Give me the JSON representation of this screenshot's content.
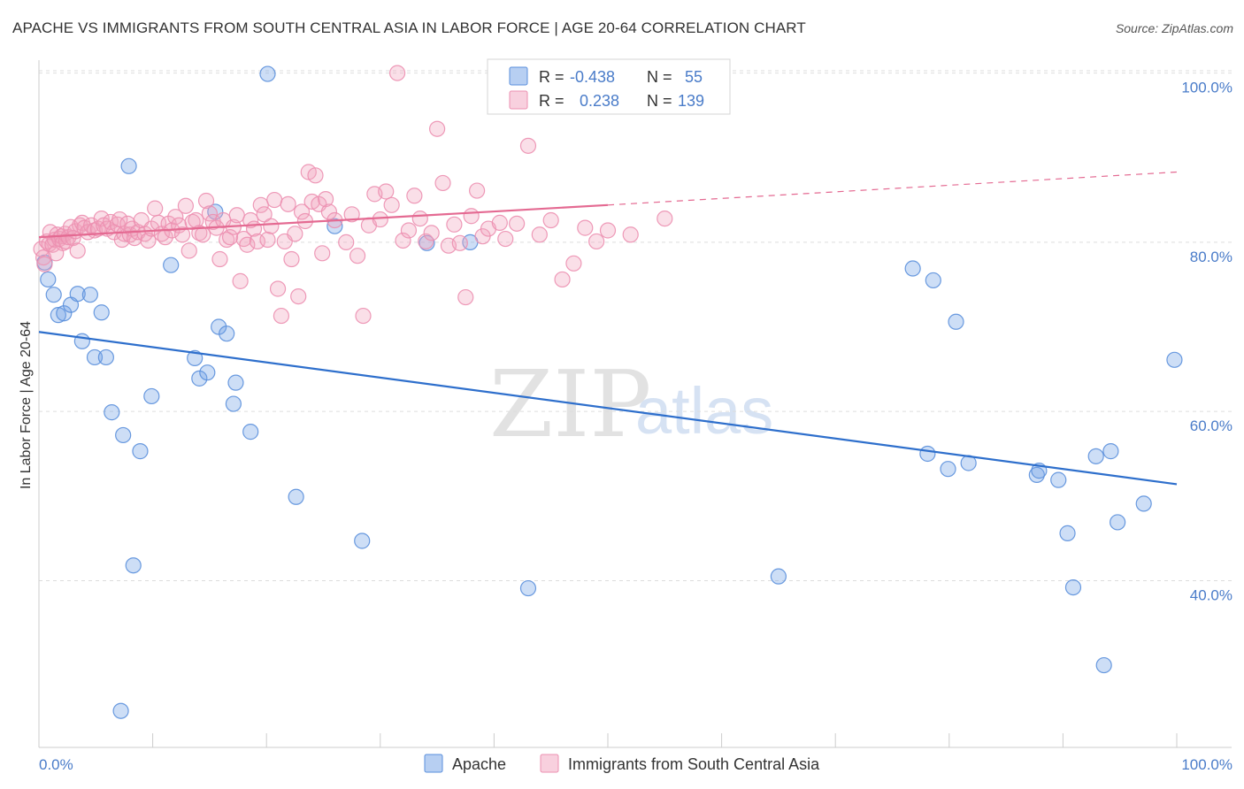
{
  "header": {
    "title": "APACHE VS IMMIGRANTS FROM SOUTH CENTRAL ASIA IN LABOR FORCE | AGE 20-64 CORRELATION CHART",
    "source": "Source: ZipAtlas.com"
  },
  "watermark": {
    "zip": "ZIP",
    "atlas": "atlas"
  },
  "colors": {
    "apache": "#6fa0e6",
    "apache_line": "#2e6fcc",
    "immigrants": "#f2a2bd",
    "immigrants_line": "#e46a92",
    "tick_text": "#4a7cc9",
    "grid": "#dddddd"
  },
  "legend": {
    "apache": {
      "r_label": "R =",
      "r_value": "-0.438",
      "n_label": "N =",
      "n_value": "55"
    },
    "immigrants": {
      "r_label": "R =",
      "r_value": "0.238",
      "n_label": "N =",
      "n_value": "139"
    }
  },
  "chart_data": {
    "type": "scatter",
    "xlabel": "",
    "ylabel": "In Labor Force | Age 20-64",
    "xlim": [
      0,
      100
    ],
    "ylim": [
      20,
      102
    ],
    "x_tick_labels": [
      "0.0%",
      "100.0%"
    ],
    "y_ticks": [
      {
        "value": 40,
        "label": "40.0%"
      },
      {
        "value": 60,
        "label": "60.0%"
      },
      {
        "value": 80,
        "label": "80.0%"
      },
      {
        "value": 100,
        "label": "100.0%"
      }
    ],
    "grid": true,
    "legend_position": "top-center",
    "series": [
      {
        "name": "Apache",
        "trend": {
          "x": [
            0,
            100
          ],
          "y": [
            69.4,
            51.4
          ],
          "style": "solid"
        },
        "points": [
          [
            0.5,
            77.6
          ],
          [
            0.8,
            75.6
          ],
          [
            1.3,
            73.8
          ],
          [
            1.7,
            71.4
          ],
          [
            2.2,
            71.6
          ],
          [
            2.8,
            72.6
          ],
          [
            3.4,
            73.9
          ],
          [
            3.8,
            68.3
          ],
          [
            4.5,
            73.8
          ],
          [
            4.9,
            66.4
          ],
          [
            5.5,
            71.7
          ],
          [
            5.9,
            66.4
          ],
          [
            6.4,
            59.9
          ],
          [
            7.2,
            24.6
          ],
          [
            7.4,
            57.2
          ],
          [
            7.9,
            89.0
          ],
          [
            8.3,
            41.8
          ],
          [
            8.9,
            55.3
          ],
          [
            9.9,
            61.8
          ],
          [
            11.6,
            77.3
          ],
          [
            13.7,
            66.3
          ],
          [
            14.1,
            63.9
          ],
          [
            14.8,
            64.6
          ],
          [
            15.5,
            83.6
          ],
          [
            15.8,
            70.0
          ],
          [
            16.5,
            69.2
          ],
          [
            17.1,
            60.9
          ],
          [
            17.3,
            63.4
          ],
          [
            18.6,
            57.6
          ],
          [
            20.1,
            99.9
          ],
          [
            22.6,
            49.9
          ],
          [
            26.0,
            81.9
          ],
          [
            28.4,
            44.7
          ],
          [
            34.1,
            79.9
          ],
          [
            37.9,
            80.0
          ],
          [
            43.0,
            39.1
          ],
          [
            65.0,
            40.5
          ],
          [
            76.8,
            76.9
          ],
          [
            78.1,
            55.0
          ],
          [
            78.6,
            75.5
          ],
          [
            79.9,
            53.2
          ],
          [
            80.6,
            70.6
          ],
          [
            81.7,
            53.9
          ],
          [
            87.7,
            52.5
          ],
          [
            87.9,
            53.0
          ],
          [
            89.6,
            51.9
          ],
          [
            90.4,
            45.6
          ],
          [
            90.9,
            39.2
          ],
          [
            92.9,
            54.7
          ],
          [
            93.6,
            30.0
          ],
          [
            94.2,
            55.3
          ],
          [
            94.8,
            46.9
          ],
          [
            97.1,
            49.1
          ],
          [
            99.8,
            66.1
          ]
        ]
      },
      {
        "name": "Immigrants from South Central Asia",
        "trend": {
          "x": [
            0,
            50
          ],
          "y": [
            80.6,
            84.4
          ],
          "dashed_extension": {
            "x": [
              50,
              100
            ],
            "y": [
              84.4,
              88.3
            ]
          }
        },
        "points": [
          [
            0.2,
            79.2
          ],
          [
            0.4,
            78.2
          ],
          [
            0.5,
            77.4
          ],
          [
            0.7,
            80.1
          ],
          [
            0.9,
            79.8
          ],
          [
            1.0,
            81.2
          ],
          [
            1.2,
            79.7
          ],
          [
            1.4,
            80.3
          ],
          [
            1.6,
            80.9
          ],
          [
            1.8,
            80.4
          ],
          [
            2.0,
            80.7
          ],
          [
            2.1,
            79.9
          ],
          [
            2.3,
            81.0
          ],
          [
            2.4,
            80.1
          ],
          [
            2.6,
            80.6
          ],
          [
            2.8,
            81.8
          ],
          [
            3.0,
            80.5
          ],
          [
            3.2,
            81.3
          ],
          [
            3.4,
            79.0
          ],
          [
            3.6,
            82.0
          ],
          [
            3.8,
            82.3
          ],
          [
            4.0,
            81.7
          ],
          [
            4.3,
            81.2
          ],
          [
            4.6,
            82.0
          ],
          [
            4.9,
            81.4
          ],
          [
            5.2,
            81.6
          ],
          [
            5.5,
            82.8
          ],
          [
            5.7,
            82.0
          ],
          [
            6.0,
            81.6
          ],
          [
            6.3,
            82.4
          ],
          [
            6.6,
            81.2
          ],
          [
            6.9,
            82.1
          ],
          [
            7.1,
            82.7
          ],
          [
            7.3,
            80.3
          ],
          [
            7.5,
            81.0
          ],
          [
            7.8,
            82.2
          ],
          [
            8.0,
            80.9
          ],
          [
            8.2,
            81.6
          ],
          [
            8.4,
            80.5
          ],
          [
            8.7,
            81.2
          ],
          [
            9.0,
            82.6
          ],
          [
            9.3,
            81.0
          ],
          [
            9.6,
            80.2
          ],
          [
            9.9,
            81.6
          ],
          [
            10.2,
            84.0
          ],
          [
            10.5,
            82.3
          ],
          [
            10.8,
            81.0
          ],
          [
            11.1,
            80.6
          ],
          [
            11.4,
            82.2
          ],
          [
            11.7,
            81.4
          ],
          [
            12.0,
            83.0
          ],
          [
            12.3,
            82.0
          ],
          [
            12.6,
            80.9
          ],
          [
            12.9,
            84.3
          ],
          [
            13.2,
            79.0
          ],
          [
            13.5,
            82.4
          ],
          [
            13.8,
            82.6
          ],
          [
            14.1,
            81.1
          ],
          [
            14.4,
            80.9
          ],
          [
            14.7,
            84.9
          ],
          [
            15.0,
            83.4
          ],
          [
            15.3,
            82.4
          ],
          [
            15.6,
            81.7
          ],
          [
            15.9,
            78.0
          ],
          [
            16.2,
            82.6
          ],
          [
            16.5,
            80.3
          ],
          [
            16.8,
            80.6
          ],
          [
            17.1,
            81.8
          ],
          [
            17.4,
            83.2
          ],
          [
            17.7,
            75.4
          ],
          [
            18.0,
            80.4
          ],
          [
            18.3,
            79.7
          ],
          [
            18.6,
            82.6
          ],
          [
            18.9,
            81.6
          ],
          [
            19.2,
            80.1
          ],
          [
            19.5,
            84.4
          ],
          [
            19.8,
            83.3
          ],
          [
            20.1,
            80.3
          ],
          [
            20.4,
            81.9
          ],
          [
            20.7,
            85.0
          ],
          [
            21.0,
            74.5
          ],
          [
            21.3,
            71.3
          ],
          [
            21.6,
            80.1
          ],
          [
            21.9,
            84.5
          ],
          [
            22.2,
            78.0
          ],
          [
            22.5,
            81.0
          ],
          [
            22.8,
            73.6
          ],
          [
            23.1,
            83.6
          ],
          [
            23.4,
            82.5
          ],
          [
            23.7,
            88.3
          ],
          [
            24.0,
            84.8
          ],
          [
            24.3,
            87.9
          ],
          [
            24.6,
            84.5
          ],
          [
            24.9,
            78.7
          ],
          [
            25.2,
            85.1
          ],
          [
            25.5,
            83.6
          ],
          [
            26.0,
            82.6
          ],
          [
            27.0,
            80.0
          ],
          [
            27.5,
            83.3
          ],
          [
            28.0,
            78.4
          ],
          [
            28.5,
            71.3
          ],
          [
            29.0,
            82.0
          ],
          [
            29.5,
            85.7
          ],
          [
            30.0,
            82.7
          ],
          [
            30.5,
            86.0
          ],
          [
            31.0,
            84.4
          ],
          [
            31.5,
            100.0
          ],
          [
            32.0,
            80.2
          ],
          [
            32.5,
            81.4
          ],
          [
            33.0,
            85.5
          ],
          [
            33.5,
            82.8
          ],
          [
            34.0,
            80.1
          ],
          [
            34.5,
            81.1
          ],
          [
            35.0,
            93.4
          ],
          [
            35.5,
            87.0
          ],
          [
            36.0,
            79.6
          ],
          [
            36.5,
            82.1
          ],
          [
            37.0,
            79.9
          ],
          [
            37.5,
            73.5
          ],
          [
            38.0,
            83.1
          ],
          [
            38.5,
            86.1
          ],
          [
            39.0,
            80.7
          ],
          [
            39.5,
            81.6
          ],
          [
            40.5,
            82.3
          ],
          [
            41.0,
            80.4
          ],
          [
            42.0,
            82.2
          ],
          [
            43.0,
            91.4
          ],
          [
            44.0,
            80.9
          ],
          [
            45.0,
            82.6
          ],
          [
            46.0,
            75.6
          ],
          [
            47.0,
            77.5
          ],
          [
            48.0,
            81.7
          ],
          [
            49.0,
            80.1
          ],
          [
            50.0,
            81.4
          ],
          [
            52.0,
            80.9
          ],
          [
            55.0,
            82.8
          ],
          [
            1.5,
            78.7
          ]
        ]
      }
    ]
  },
  "bottom_legend": {
    "apache": "Apache",
    "immigrants": "Immigrants from South Central Asia"
  }
}
